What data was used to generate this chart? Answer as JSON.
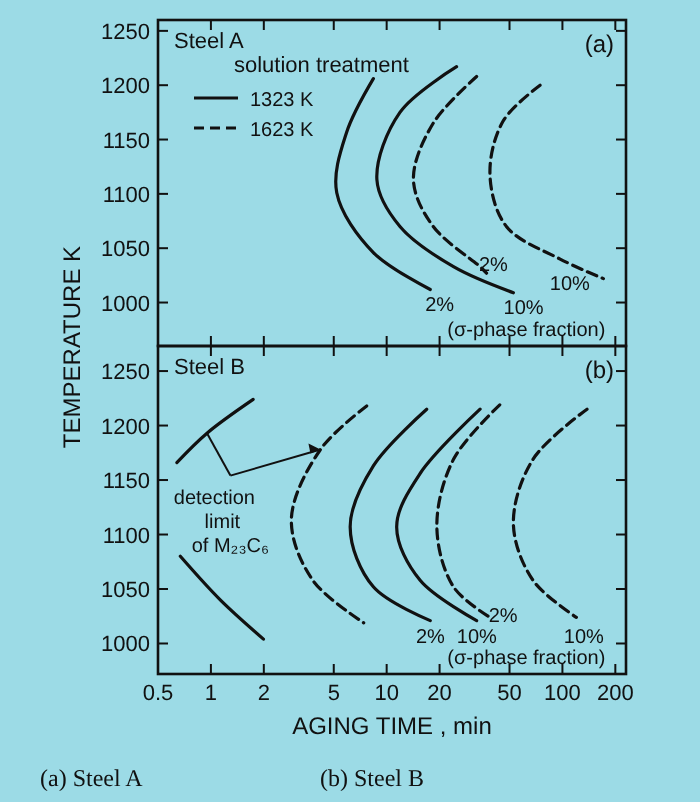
{
  "chart_data": [
    {
      "type": "line",
      "title": "Steel A",
      "ylabel": "TEMPERATURE   K",
      "legend_title": "solution treatment",
      "legend": "top left",
      "log": "x",
      "tick_labels": "y",
      "xlim": [
        0.5,
        230
      ],
      "xticks": [
        0.5,
        1,
        2,
        5,
        10,
        20,
        50,
        100,
        200
      ],
      "ylim": [
        960,
        1260
      ],
      "yticks": [
        1000,
        1050,
        1100,
        1150,
        1200,
        1250
      ],
      "series": [
        {
          "name": "1323 K",
          "color": "#111111",
          "line_style": "solid",
          "x": [
            8.4,
            5.9,
            5.2,
            8.4,
            17.7
          ],
          "values": [
            1206,
            1156,
            1101,
            1046,
            1012
          ]
        },
        {
          "color": "#111111",
          "line_style": "solid",
          "x": [
            25,
            11.9,
            8.8,
            11.9,
            24,
            52.6
          ],
          "values": [
            1217,
            1175,
            1113,
            1070,
            1033,
            1009
          ]
        },
        {
          "name": "1623 K",
          "color": "#111111",
          "line_style": "dashed",
          "x": [
            32.5,
            18.4,
            14.2,
            18.4,
            34,
            37
          ],
          "values": [
            1208,
            1165,
            1113,
            1070,
            1033,
            1027
          ]
        },
        {
          "color": "#111111",
          "line_style": "dashed",
          "x": [
            74.6,
            46,
            38.7,
            48,
            97,
            171
          ],
          "values": [
            1200,
            1167,
            1118,
            1070,
            1040,
            1022
          ]
        }
      ],
      "annotations": [
        "2%",
        "10%",
        "2%",
        "10%",
        "(a)",
        "(σ-phase fraction)",
        "(a)  Steel A"
      ]
    },
    {
      "type": "line",
      "title": "Steel B",
      "xlabel": "AGING TIME , min",
      "log": "x",
      "xlim": [
        0.5,
        230
      ],
      "xticks": [
        0.5,
        1,
        2,
        5,
        10,
        20,
        50,
        100,
        200
      ],
      "ylim": [
        972,
        1273
      ],
      "yticks": [
        1000,
        1050,
        1100,
        1150,
        1200,
        1250
      ],
      "series": [
        {
          "color": "#111111",
          "line_style": "solid",
          "x": [
            0.64,
            0.95,
            1.74
          ],
          "values": [
            1166,
            1193,
            1224
          ]
        },
        {
          "color": "#111111",
          "line_style": "solid",
          "x": [
            0.67,
            1.13,
            1.99
          ],
          "values": [
            1080,
            1040,
            1004
          ]
        },
        {
          "color": "#111111",
          "line_style": "dashed",
          "x": [
            7.7,
            4.2,
            2.87,
            3.8,
            7.4
          ],
          "values": [
            1218,
            1178,
            1114,
            1058,
            1019
          ]
        },
        {
          "color": "#111111",
          "line_style": "solid",
          "x": [
            16.9,
            8.4,
            6.2,
            8.4,
            17.7
          ],
          "values": [
            1215,
            1163,
            1107,
            1052,
            1021
          ]
        },
        {
          "color": "#111111",
          "line_style": "solid",
          "x": [
            34,
            15.5,
            11.4,
            15.5,
            32.5
          ],
          "values": [
            1215,
            1156,
            1107,
            1058,
            1021
          ]
        },
        {
          "color": "#111111",
          "line_style": "dashed",
          "x": [
            44,
            24,
            19.3,
            24,
            38.7
          ],
          "values": [
            1219,
            1169,
            1107,
            1052,
            1024
          ]
        },
        {
          "color": "#111111",
          "line_style": "dashed",
          "x": [
            138,
            68,
            52.6,
            68,
            120
          ],
          "values": [
            1215,
            1169,
            1110,
            1058,
            1024
          ]
        }
      ],
      "annotations": [
        "2%",
        "10%",
        "2%",
        "10%",
        {
          "text": "detection limit of M₂₃C₆",
          "x": 4.2,
          "y": 1178
        },
        "(b)",
        "(σ-phase fraction)",
        "(b)  Steel B"
      ]
    }
  ]
}
